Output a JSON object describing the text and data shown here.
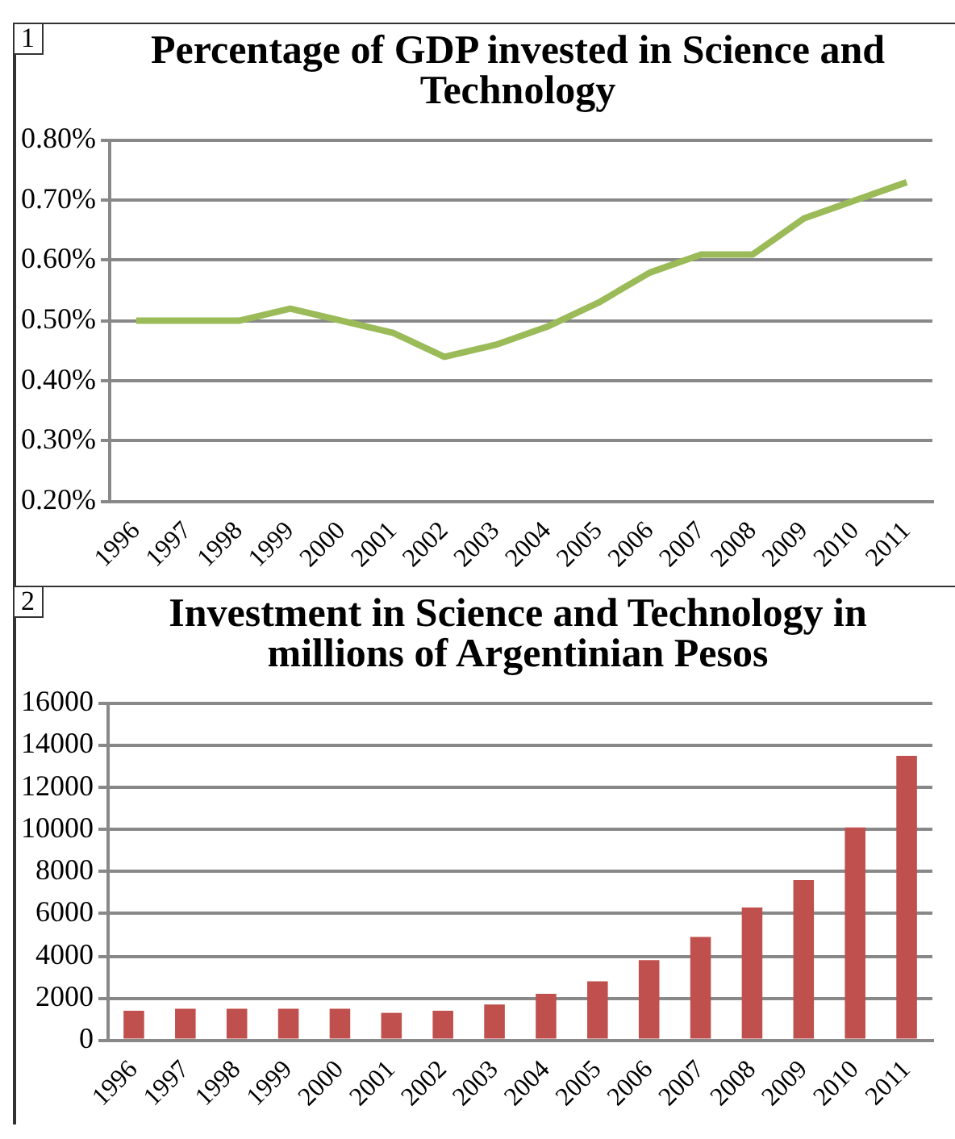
{
  "chart_data": [
    {
      "type": "line",
      "title": "Percentage of GDP invested in Science and Technology",
      "annotations": [
        "1"
      ],
      "categories": [
        "1996",
        "1997",
        "1998",
        "1999",
        "2000",
        "2001",
        "2002",
        "2003",
        "2004",
        "2005",
        "2006",
        "2007",
        "2008",
        "2009",
        "2010",
        "2011"
      ],
      "series": [
        {
          "color": "#9bbb59",
          "values": [
            0.5,
            0.5,
            0.5,
            0.52,
            0.5,
            0.48,
            0.44,
            0.46,
            0.49,
            0.53,
            0.58,
            0.61,
            0.61,
            0.67,
            0.7,
            0.73
          ]
        }
      ],
      "ylim": [
        0.2,
        0.8
      ],
      "yticks": [
        {
          "value": 0.2,
          "label": "0.20%"
        },
        {
          "value": 0.3,
          "label": "0.30%"
        },
        {
          "value": 0.4,
          "label": "0.40%"
        },
        {
          "value": 0.5,
          "label": "0.50%"
        },
        {
          "value": 0.6,
          "label": "0.60%"
        },
        {
          "value": 0.7,
          "label": "0.70%"
        },
        {
          "value": 0.8,
          "label": "0.80%"
        }
      ],
      "grid": "y",
      "marker": "none",
      "line_style": "solid"
    },
    {
      "type": "bar",
      "title": "Investment in Science and Technology in millions of Argentinian Pesos",
      "annotations": [
        "2"
      ],
      "categories": [
        "1996",
        "1997",
        "1998",
        "1999",
        "2000",
        "2001",
        "2002",
        "2003",
        "2004",
        "2005",
        "2006",
        "2007",
        "2008",
        "2009",
        "2010",
        "2011"
      ],
      "series": [
        {
          "color": "#c0504d",
          "values": [
            1400,
            1500,
            1500,
            1500,
            1500,
            1300,
            1400,
            1700,
            2200,
            2800,
            3800,
            4900,
            6300,
            7600,
            10100,
            13500
          ]
        }
      ],
      "ylim": [
        0,
        16000
      ],
      "yticks": [
        0,
        2000,
        4000,
        6000,
        8000,
        10000,
        12000,
        14000,
        16000
      ],
      "grid": "y"
    }
  ]
}
